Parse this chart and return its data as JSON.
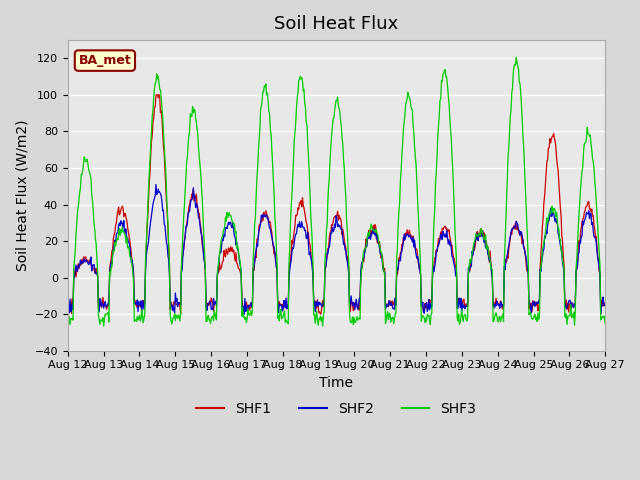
{
  "title": "Soil Heat Flux",
  "ylabel": "Soil Heat Flux (W/m2)",
  "xlabel": "Time",
  "ylim": [
    -40,
    130
  ],
  "yticks": [
    -40,
    -20,
    0,
    20,
    40,
    60,
    80,
    100,
    120
  ],
  "date_labels": [
    "Aug 12",
    "Aug 13",
    "Aug 14",
    "Aug 15",
    "Aug 16",
    "Aug 17",
    "Aug 18",
    "Aug 19",
    "Aug 20",
    "Aug 21",
    "Aug 22",
    "Aug 23",
    "Aug 24",
    "Aug 25",
    "Aug 26",
    "Aug 27"
  ],
  "legend_label": "BA_met",
  "series_colors": {
    "SHF1": "#cc0000",
    "SHF2": "#0000cc",
    "SHF3": "#00cc00"
  },
  "background_color": "#e8e8e8",
  "grid_color": "#ffffff",
  "title_fontsize": 13,
  "label_fontsize": 10,
  "tick_fontsize": 8
}
